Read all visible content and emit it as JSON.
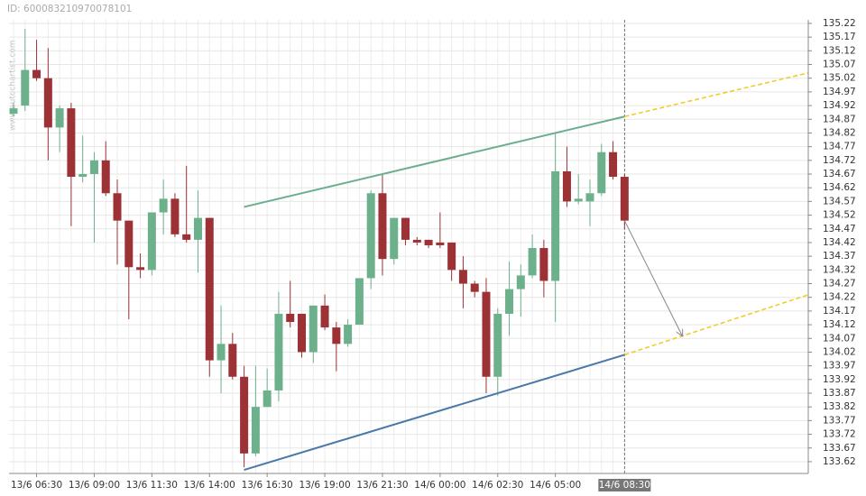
{
  "chart_data": {
    "type": "candlestick",
    "id_label": "ID: 600083210970078101",
    "watermark": "www.autochartist.com",
    "categories": [
      null,
      null,
      "13/6 06:30",
      null,
      null,
      null,
      null,
      "13/6 09:00",
      null,
      null,
      null,
      null,
      "13/6 11:30",
      null,
      null,
      null,
      null,
      "13/6 14:00",
      null,
      null,
      null,
      null,
      "13/6 16:30",
      null,
      null,
      null,
      null,
      "13/6 19:00",
      null,
      null,
      null,
      null,
      "13/6 21:30",
      null,
      null,
      null,
      null,
      "14/6 00:00",
      null,
      null,
      null,
      null,
      "14/6 02:30",
      null,
      null,
      null,
      null,
      "14/6 05:00",
      null,
      null,
      null,
      null,
      null,
      "14/6 08:30"
    ],
    "highlight_index": 53,
    "open": [
      134.89,
      134.92,
      135.05,
      135.02,
      134.84,
      134.91,
      134.66,
      134.67,
      134.72,
      134.6,
      134.5,
      134.33,
      134.32,
      134.53,
      134.58,
      134.45,
      134.43,
      134.51,
      133.99,
      134.05,
      133.93,
      133.65,
      133.82,
      133.88,
      134.16,
      134.16,
      134.02,
      134.19,
      134.11,
      134.05,
      134.12,
      134.29,
      134.6,
      134.36,
      134.51,
      134.43,
      134.43,
      134.42,
      134.42,
      134.32,
      134.27,
      134.24,
      133.93,
      134.16,
      134.25,
      134.3,
      134.4,
      134.28,
      134.68,
      134.57,
      134.57,
      134.6,
      134.75,
      134.66
    ],
    "high": [
      134.93,
      135.2,
      135.16,
      135.13,
      134.92,
      134.93,
      134.81,
      134.75,
      134.79,
      134.65,
      134.5,
      134.38,
      134.53,
      134.65,
      134.6,
      134.7,
      134.61,
      134.51,
      134.19,
      134.09,
      133.97,
      133.97,
      133.96,
      134.24,
      134.28,
      134.16,
      134.19,
      134.23,
      134.13,
      134.14,
      134.29,
      134.61,
      134.67,
      134.51,
      134.51,
      134.44,
      134.43,
      134.53,
      134.42,
      134.37,
      134.28,
      134.29,
      134.18,
      134.35,
      134.34,
      134.45,
      134.43,
      134.82,
      134.77,
      134.67,
      134.65,
      134.78,
      134.79,
      134.67
    ],
    "low": [
      134.88,
      134.9,
      135.01,
      134.72,
      134.75,
      134.48,
      134.64,
      134.42,
      134.59,
      134.34,
      134.14,
      134.29,
      134.3,
      134.45,
      134.44,
      134.42,
      134.31,
      133.93,
      133.87,
      133.92,
      133.6,
      133.64,
      133.82,
      133.84,
      134.11,
      134.0,
      133.98,
      134.1,
      133.95,
      134.04,
      134.12,
      134.25,
      134.3,
      134.34,
      134.41,
      134.41,
      134.4,
      134.4,
      134.28,
      134.18,
      134.22,
      133.87,
      133.86,
      134.08,
      134.15,
      134.29,
      134.22,
      134.13,
      134.55,
      134.56,
      134.48,
      134.59,
      134.65,
      134.47
    ],
    "close": [
      134.91,
      135.05,
      135.02,
      134.84,
      134.91,
      134.66,
      134.67,
      134.72,
      134.6,
      134.5,
      134.33,
      134.32,
      134.53,
      134.58,
      134.45,
      134.43,
      134.51,
      133.99,
      134.05,
      133.93,
      133.65,
      133.82,
      133.88,
      134.16,
      134.13,
      134.02,
      134.19,
      134.11,
      134.05,
      134.12,
      134.29,
      134.6,
      134.36,
      134.51,
      134.43,
      134.42,
      134.41,
      134.41,
      134.32,
      134.27,
      134.24,
      133.93,
      134.16,
      134.25,
      134.3,
      134.4,
      134.28,
      134.68,
      134.57,
      134.58,
      134.6,
      134.75,
      134.66,
      134.5
    ],
    "up_color": "#6db08c",
    "down_color": "#9c3236",
    "lines": [
      {
        "color": "#6aae8e",
        "dash": false,
        "x": [
          20,
          53
        ],
        "values": [
          134.55,
          134.88
        ]
      },
      {
        "color": "#4a78a8",
        "dash": false,
        "x": [
          20,
          53
        ],
        "values": [
          133.59,
          134.01
        ]
      },
      {
        "color": "#f2cc2a",
        "dash": true,
        "x": [
          53,
          69
        ],
        "values": [
          134.88,
          135.04
        ]
      },
      {
        "color": "#f2cc2a",
        "dash": true,
        "x": [
          53,
          69
        ],
        "values": [
          134.01,
          134.23
        ]
      }
    ],
    "arrow": {
      "color": "#888888",
      "x": [
        53,
        58
      ],
      "values": [
        134.5,
        134.08
      ]
    },
    "ylim": [
      133.577,
      135.233
    ],
    "yticks": [
      133.62,
      133.67,
      133.72,
      133.77,
      133.82,
      133.87,
      133.92,
      133.97,
      134.02,
      134.07,
      134.12,
      134.17,
      134.22,
      134.27,
      134.32,
      134.37,
      134.42,
      134.47,
      134.52,
      134.57,
      134.62,
      134.67,
      134.72,
      134.77,
      134.82,
      134.87,
      134.92,
      134.97,
      135.02,
      135.07,
      135.12,
      135.17,
      135.22
    ],
    "grid": true
  }
}
